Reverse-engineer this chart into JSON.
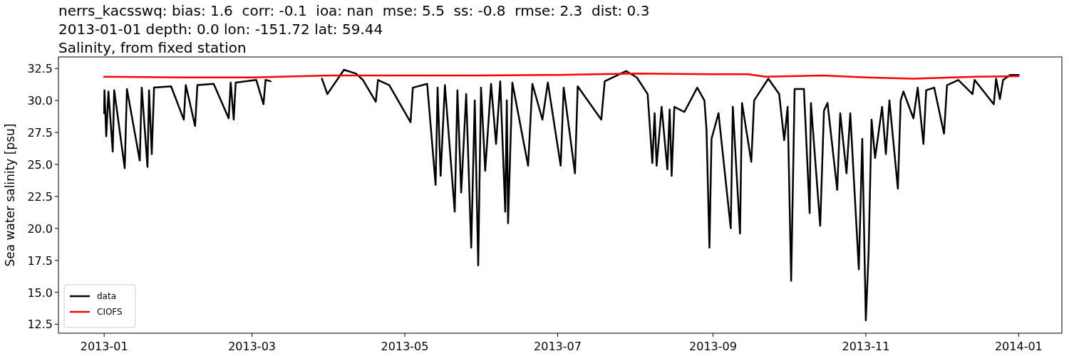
{
  "chart_data": {
    "type": "line",
    "title": "nerrs_kacsswq: bias: 1.6  corr: -0.1  ioa: nan  mse: 5.5  ss: -0.8  rmse: 2.3  dist: 0.3\n2013-01-01 depth: 0.0 lon: -151.72 lat: 59.44\nSalinity, from fixed station",
    "ylabel": "Sea water salinity [psu]",
    "xlim": [
      "2012-12-13T18:00",
      "2014-01-18T06:00"
    ],
    "ylim": [
      11.8,
      33.4
    ],
    "xticks": [
      "2013-01",
      "2013-03",
      "2013-05",
      "2013-07",
      "2013-09",
      "2013-11",
      "2014-01"
    ],
    "yticks": [
      12.5,
      {
        "value": 15,
        "label": "15.0"
      },
      17.5,
      {
        "value": 20,
        "label": "20.0"
      },
      22.5,
      {
        "value": 25,
        "label": "25.0"
      },
      27.5,
      {
        "value": 30,
        "label": "30.0"
      },
      32.5
    ],
    "grid": false,
    "legend": "bottom left",
    "line_style": "solid",
    "marker": "none",
    "series": [
      {
        "name": "data",
        "color": "#000000",
        "x": [
          "2013-01-01",
          "2013-01-01T03:00",
          "2013-01-01T20:00",
          "2013-01-02T17:00",
          "2013-01-04T10:00",
          "2013-01-05",
          "2013-01-09T05:00",
          "2013-01-10T02:00",
          "2013-01-15T05:00",
          "2013-01-16",
          "2013-01-18T07:00",
          "2013-01-18T22:00",
          "2013-01-20",
          "2013-01-20T22:00",
          "2013-01-27T17:00",
          "2013-02-01T19:00",
          "2013-02-02T14:00",
          "2013-02-06T07:00",
          "2013-02-07T05:00",
          "2013-02-13T17:00",
          "2013-02-19T17:00",
          "2013-02-20T12:00",
          "2013-02-21T17:00",
          "2013-02-22T12:00",
          "2013-03-02T17:00",
          "2013-03-05T14:00",
          "2013-03-06T10:00",
          "2013-03-08T10:00",
          "2013-03-18",
          "2013-03-28T22:00",
          "2013-03-31T02:00",
          "2013-04-06T17:00",
          "2013-04-11T12:00",
          "2013-04-14T07:00",
          "2013-04-19T10:00",
          "2013-04-20T07:00",
          "2013-04-24T19:00",
          "2013-05-03T07:00",
          "2013-05-04T05:00",
          "2013-05-09T22:00",
          "2013-05-13T07:00",
          "2013-05-14T02:00",
          "2013-05-15T07:00",
          "2013-05-17",
          "2013-05-20T22:00",
          "2013-05-22",
          "2013-05-23T12:00",
          "2013-05-25T12:00",
          "2013-05-27T12:00",
          "2013-05-28T22:00",
          "2013-05-30T07:00",
          "2013-05-31T10:00",
          "2013-06-02T02:00",
          "2013-06-04T10:00",
          "2013-06-06T10:00",
          "2013-06-08T02:00",
          "2013-06-10T02:00",
          "2013-06-10T17:00",
          "2013-06-11T05:00",
          "2013-06-12T22:00",
          "2013-06-19T05:00",
          "2013-06-20T22:00",
          "2013-06-24T22:00",
          "2013-06-27T02:00",
          "2013-07-02T05:00",
          "2013-07-03T10:00",
          "2013-07-07T22:00",
          "2013-07-09",
          "2013-07-18T10:00",
          "2013-07-19T19:00",
          "2013-07-28T07:00",
          "2013-08-01T14:00",
          "2013-08-05T22:00",
          "2013-08-07T19:00",
          "2013-08-08T17:00",
          "2013-08-09T12:00",
          "2013-08-11T12:00",
          "2013-08-13T19:00",
          "2013-08-14T17:00",
          "2013-08-15T12:00",
          "2013-08-16T14:00",
          "2013-08-20T14:00",
          "2013-08-25T17:00",
          "2013-08-28T14:00",
          "2013-08-29T10:00",
          "2013-08-30T14:00",
          "2013-08-31T10:00",
          "2013-09-03T05:00",
          "2013-09-08T02:00",
          "2013-09-08T22:00",
          "2013-09-11T19:00",
          "2013-09-12T14:00",
          "2013-09-16T07:00",
          "2013-09-17T10:00",
          "2013-09-23T02:00",
          "2013-09-27T10:00",
          "2013-09-29T10:00",
          "2013-09-30T19:00",
          "2013-10-02T05:00",
          "2013-10-03T14:00",
          "2013-10-07T07:00",
          "2013-10-09T14:00",
          "2013-10-10T02:00",
          "2013-10-13T19:00",
          "2013-10-15T07:00",
          "2013-10-16T17:00",
          "2013-10-20T14:00",
          "2013-10-21T19:00",
          "2013-10-24T07:00",
          "2013-10-25T19:00",
          "2013-10-29T05:00",
          "2013-10-30T14:00",
          "2013-11-01",
          "2013-11-02T02:00",
          "2013-11-03T07:00",
          "2013-11-04T17:00",
          "2013-11-07T12:00",
          "2013-11-09",
          "2013-11-10T10:00",
          "2013-11-13T19:00",
          "2013-11-14T22:00",
          "2013-11-16",
          "2013-11-20",
          "2013-11-21T17:00",
          "2013-11-24",
          "2013-11-25T02:00",
          "2013-11-28T07:00",
          "2013-12-02T05:00",
          "2013-12-03T10:00",
          "2013-12-07T22:00",
          "2013-12-13T14:00",
          "2013-12-14T10:00",
          "2013-12-22T02:00",
          "2013-12-23",
          "2013-12-24T12:00",
          "2013-12-25T19:00",
          "2013-12-28T14:00",
          "2014-01-01"
        ],
        "values": [
          29.0,
          30.8,
          27.2,
          30.7,
          26.0,
          30.8,
          24.7,
          30.9,
          25.3,
          31.0,
          24.8,
          30.8,
          25.8,
          31.0,
          31.1,
          28.5,
          31.2,
          28.0,
          31.2,
          31.3,
          28.6,
          31.4,
          28.5,
          31.4,
          31.6,
          29.7,
          31.6,
          31.5,
          null,
          31.7,
          30.5,
          32.4,
          32.1,
          31.6,
          29.9,
          31.6,
          31.2,
          28.3,
          31.0,
          31.3,
          23.4,
          31.0,
          24.1,
          31.2,
          21.3,
          30.8,
          22.8,
          30.5,
          18.5,
          30.0,
          17.1,
          31.0,
          24.5,
          31.3,
          26.6,
          31.5,
          21.3,
          30.0,
          20.4,
          31.4,
          24.9,
          31.3,
          28.5,
          31.4,
          24.9,
          31.0,
          24.3,
          31.1,
          28.5,
          31.5,
          32.3,
          31.8,
          30.5,
          25.1,
          29.0,
          24.9,
          29.5,
          24.6,
          29.3,
          24.1,
          29.5,
          29.1,
          31.0,
          30.0,
          27.7,
          18.5,
          27.0,
          29.0,
          20.0,
          29.5,
          19.6,
          29.8,
          25.2,
          30.0,
          31.7,
          30.5,
          26.9,
          29.5,
          15.9,
          30.9,
          30.9,
          21.2,
          29.8,
          20.2,
          29.2,
          29.8,
          23.0,
          29.0,
          24.3,
          29.0,
          16.8,
          27.0,
          12.8,
          17.9,
          28.5,
          25.5,
          29.5,
          25.8,
          30.0,
          23.1,
          30.0,
          30.7,
          28.6,
          31.0,
          26.6,
          30.8,
          31.0,
          27.4,
          31.2,
          31.6,
          30.5,
          31.6,
          29.7,
          31.7,
          30.1,
          31.6,
          32.0,
          32.0
        ]
      },
      {
        "name": "CIOFS",
        "color": "#ff0000",
        "x": [
          "2013-01-01",
          "2013-02-01",
          "2013-03-01",
          "2013-04-01",
          "2013-05-01",
          "2013-06-01",
          "2013-07-01",
          "2013-08-01",
          "2013-09-01",
          "2013-09-15",
          "2013-09-22",
          "2013-10-15",
          "2013-11-01",
          "2013-11-20",
          "2013-12-15",
          "2014-01-01"
        ],
        "values": [
          31.85,
          31.8,
          31.8,
          31.95,
          31.95,
          31.95,
          32.0,
          32.1,
          32.05,
          32.05,
          31.85,
          31.95,
          31.8,
          31.7,
          31.85,
          31.9
        ]
      }
    ]
  }
}
